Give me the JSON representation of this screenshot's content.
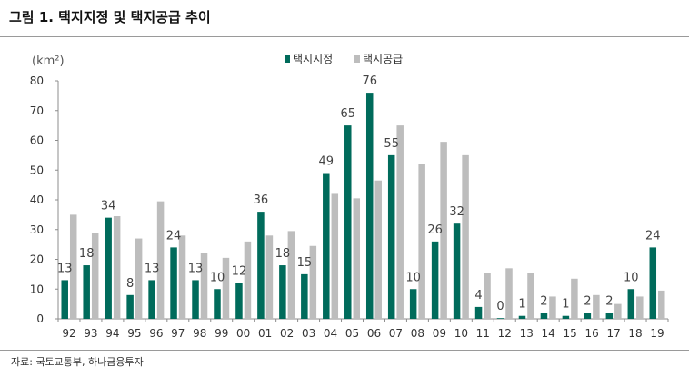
{
  "figure": {
    "title": "그림 1. 택지지정 및 택지공급 추이",
    "source": "자료: 국토교통부, 하나금융투자"
  },
  "colors": {
    "designation": "#006B5B",
    "supply": "#BDBDBD",
    "axis": "#8c8c8c",
    "text": "#333333"
  },
  "chart_data": {
    "type": "bar",
    "unit_label": "(km²)",
    "categories": [
      "92",
      "93",
      "94",
      "95",
      "96",
      "97",
      "98",
      "99",
      "00",
      "01",
      "02",
      "03",
      "04",
      "05",
      "06",
      "07",
      "08",
      "09",
      "10",
      "11",
      "12",
      "13",
      "14",
      "15",
      "16",
      "17",
      "18",
      "19"
    ],
    "ylim": [
      0,
      80
    ],
    "yticks": [
      0,
      10,
      20,
      30,
      40,
      50,
      60,
      70,
      80
    ],
    "grid": false,
    "legend_position": "top-center",
    "series": [
      {
        "name": "택지지정",
        "color": "#006B5B",
        "values": [
          13,
          18,
          34,
          8,
          13,
          24,
          13,
          10,
          12,
          36,
          18,
          15,
          49,
          65,
          76,
          55,
          10,
          26,
          32,
          4,
          0,
          1,
          2,
          1,
          2,
          2,
          10,
          24
        ],
        "labels": [
          "13",
          "18",
          "34",
          "8",
          "13",
          "24",
          "13",
          "10",
          "12",
          "36",
          "18",
          "15",
          "49",
          "65",
          "76",
          "55",
          "10",
          "26",
          "32",
          "4",
          "0",
          "1",
          "2",
          "1",
          "2",
          "2",
          "10",
          "24"
        ]
      },
      {
        "name": "택지공급",
        "color": "#BDBDBD",
        "values": [
          35,
          29,
          34.5,
          27,
          39.5,
          28,
          22,
          20.5,
          26,
          28,
          29.5,
          24.5,
          42,
          40.5,
          46.5,
          65,
          52,
          59.5,
          55,
          15.5,
          17,
          15.5,
          7.5,
          13.5,
          8,
          5,
          7.5,
          9.5
        ]
      }
    ]
  }
}
